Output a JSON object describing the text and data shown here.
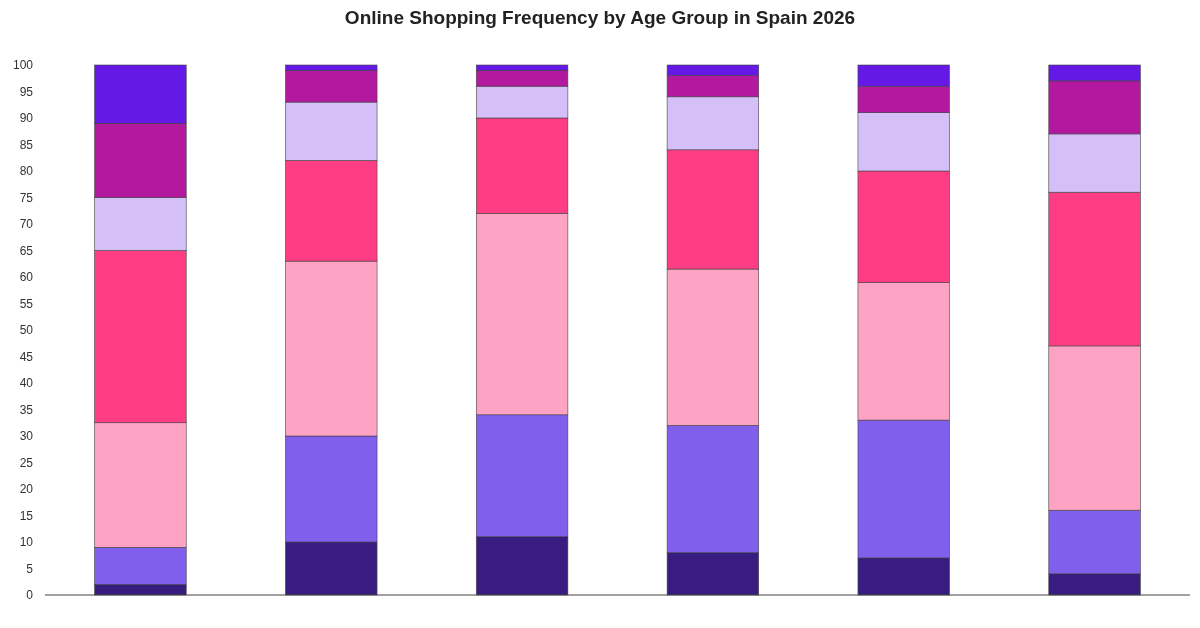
{
  "chart_data": {
    "type": "bar",
    "title": "Online Shopping Frequency by Age Group in Spain 2026",
    "categories": [
      null,
      null,
      null,
      null,
      null,
      null
    ],
    "stacked": true,
    "series": [
      {
        "color": "#381c80",
        "values": [
          2,
          10,
          11,
          8,
          7,
          4
        ]
      },
      {
        "color": "#7f5fec",
        "values": [
          7,
          20,
          23,
          24,
          26,
          12
        ]
      },
      {
        "color": "#ffa3c4",
        "values": [
          23.5,
          33,
          38,
          29.5,
          26,
          31
        ]
      },
      {
        "color": "#ff3d84",
        "values": [
          32.5,
          19,
          18,
          22.5,
          21,
          29
        ]
      },
      {
        "color": "#d4bff9",
        "values": [
          10,
          11,
          6,
          10,
          11,
          11
        ]
      },
      {
        "color": "#b3199e",
        "values": [
          14,
          6,
          3,
          4,
          5,
          10
        ]
      },
      {
        "color": "#6419e6",
        "values": [
          11,
          1,
          1,
          2,
          4,
          3
        ]
      }
    ],
    "ylim": [
      0,
      100
    ],
    "yticks": [
      0,
      5,
      10,
      15,
      20,
      25,
      30,
      35,
      40,
      45,
      50,
      55,
      60,
      65,
      70,
      75,
      80,
      85,
      90,
      95,
      100
    ],
    "grid": false
  }
}
